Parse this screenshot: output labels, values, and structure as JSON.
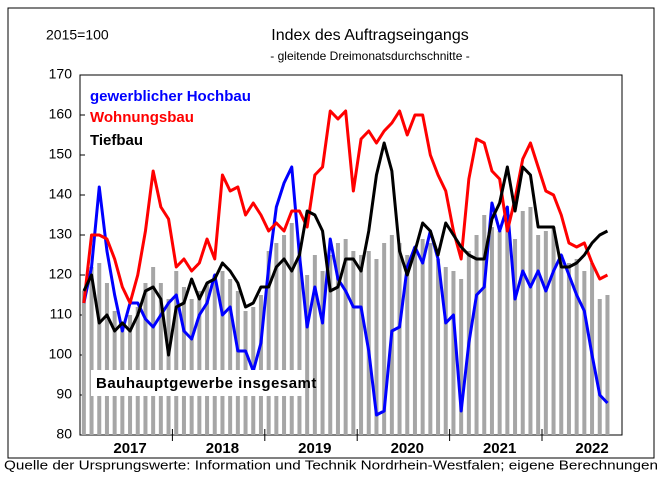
{
  "chart_data": {
    "type": "line",
    "title": "Index des Auftragseingangs",
    "subtitle": "- gleitende Dreimonatsdurchschnitte -",
    "base_label": "2015=100",
    "source": "Quelle der Ursprungswerte:  Information und Technik Nordrhein-Westfalen; eigene  Berechnungen",
    "categories": [
      null,
      null,
      null,
      null,
      null,
      null,
      "2017",
      null,
      null,
      null,
      null,
      null,
      null,
      null,
      null,
      null,
      null,
      null,
      "2018",
      null,
      null,
      null,
      null,
      null,
      null,
      null,
      null,
      null,
      null,
      null,
      "2019",
      null,
      null,
      null,
      null,
      null,
      null,
      null,
      null,
      null,
      null,
      null,
      "2020",
      null,
      null,
      null,
      null,
      null,
      null,
      null,
      null,
      null,
      null,
      null,
      "2021",
      null,
      null,
      null,
      null,
      null,
      null,
      null,
      null,
      null,
      null,
      null,
      "2022",
      null,
      null
    ],
    "ylim": [
      80,
      170
    ],
    "yticks": [
      80,
      90,
      100,
      110,
      120,
      130,
      140,
      150,
      160,
      170
    ],
    "grid": false,
    "series": [
      {
        "name": "Bauhauptgewerbe insgesamt",
        "type": "bar",
        "color": "#a6a6a6",
        "values": [
          116,
          122,
          123,
          118,
          111,
          108,
          110,
          112,
          118,
          122,
          118,
          114,
          121,
          117,
          114,
          116,
          118,
          120,
          121,
          119,
          116,
          111,
          112,
          115,
          126,
          128,
          130,
          133,
          128,
          120,
          125,
          121,
          125,
          128,
          129,
          126,
          125,
          126,
          124,
          128,
          130,
          128,
          125,
          127,
          129,
          128,
          124,
          122,
          121,
          119,
          126,
          130,
          135,
          132,
          131,
          134,
          129,
          136,
          137,
          130,
          131,
          132,
          125,
          123,
          124,
          121,
          123,
          114,
          115
        ]
      },
      {
        "name": "gewerblicher Hochbau",
        "type": "line",
        "color": "#0000ff",
        "values": [
          113,
          122,
          142,
          126,
          115,
          106,
          113,
          113,
          109,
          107,
          110,
          113,
          115,
          106,
          104,
          110,
          113,
          120,
          110,
          112,
          101,
          101,
          96,
          103,
          122,
          137,
          143,
          147,
          125,
          107,
          117,
          108,
          129,
          119,
          116,
          112,
          112,
          101,
          85,
          86,
          106,
          107,
          122,
          127,
          123,
          131,
          124,
          108,
          110,
          86,
          103,
          115,
          117,
          138,
          131,
          137,
          114,
          121,
          117,
          121,
          116,
          121,
          125,
          120,
          115,
          111,
          100,
          90,
          88
        ]
      },
      {
        "name": "Wohnungsbau",
        "type": "line",
        "color": "#ff0000",
        "values": [
          113,
          130,
          130,
          129,
          124,
          117,
          113,
          120,
          131,
          146,
          137,
          134,
          122,
          124,
          121,
          123,
          129,
          124,
          145,
          141,
          142,
          135,
          138,
          135,
          131,
          133,
          131,
          136,
          136,
          132,
          145,
          147,
          161,
          159,
          161,
          141,
          154,
          156,
          153,
          156,
          158,
          161,
          155,
          160,
          160,
          150,
          145,
          141,
          131,
          124,
          144,
          154,
          153,
          146,
          144,
          131,
          139,
          149,
          153,
          147,
          141,
          140,
          135,
          128,
          127,
          128,
          123,
          119,
          120
        ]
      },
      {
        "name": "Tiefbau",
        "type": "line",
        "color": "#000000",
        "values": [
          116,
          120,
          108,
          110,
          106,
          108,
          106,
          110,
          116,
          117,
          114,
          100,
          112,
          113,
          119,
          114,
          118,
          119,
          123,
          121,
          118,
          112,
          113,
          117,
          117,
          122,
          124,
          121,
          125,
          136,
          135,
          131,
          116,
          117,
          124,
          124,
          121,
          131,
          145,
          153,
          146,
          126,
          120,
          126,
          133,
          131,
          125,
          133,
          130,
          127,
          125,
          124,
          124,
          134,
          138,
          147,
          136,
          147,
          145,
          132,
          132,
          132,
          122,
          122,
          123,
          125,
          128,
          130,
          131
        ]
      }
    ]
  }
}
